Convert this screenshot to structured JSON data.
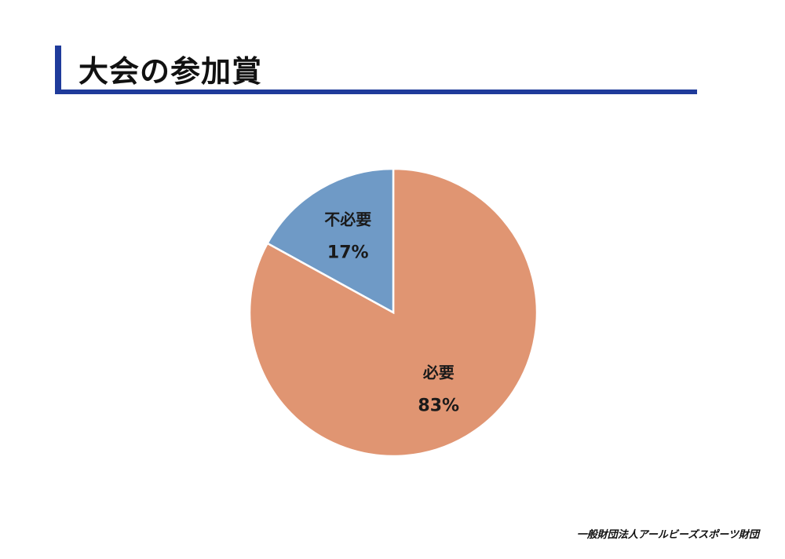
{
  "slide": {
    "title": "大会の参加賞",
    "organization": "一般財団法人アールビーズスポーツ財団"
  },
  "chart_data": {
    "type": "pie",
    "categories": [
      "必要",
      "不必要"
    ],
    "values": [
      83,
      17
    ],
    "labels": [
      "83%",
      "17%"
    ],
    "colors": [
      "#e09572",
      "#6f9ac6"
    ],
    "start": "12 o'clock",
    "direction": "clockwise",
    "slice_border": "#ffffff"
  }
}
